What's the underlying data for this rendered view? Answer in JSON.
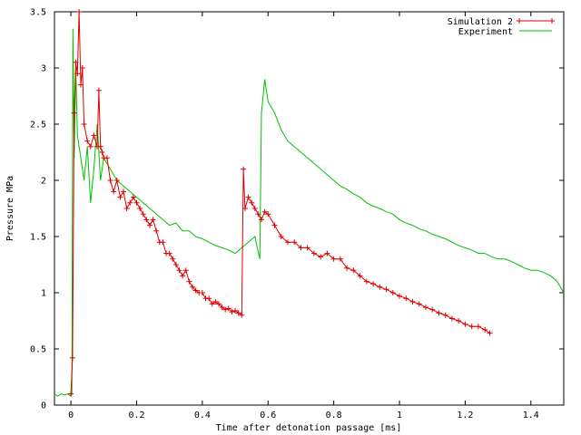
{
  "chart_data": {
    "type": "line",
    "title": "",
    "xlabel": "Time after detonation passage [ms]",
    "ylabel": "Pressure MPa",
    "xlim": [
      -0.05,
      1.5
    ],
    "ylim": [
      0,
      3.5
    ],
    "grid": false,
    "legend_position": "top-right",
    "x_ticks": [
      0,
      0.2,
      0.4,
      0.6,
      0.8,
      1,
      1.2,
      1.4
    ],
    "x_tick_labels": [
      "0",
      "0.2",
      "0.4",
      "0.6",
      "0.8",
      "1",
      "1.2",
      "1.4"
    ],
    "y_ticks": [
      0,
      0.5,
      1,
      1.5,
      2,
      2.5,
      3,
      3.5
    ],
    "y_tick_labels": [
      "0",
      "0.5",
      "1",
      "1.5",
      "2",
      "2.5",
      "3",
      "3.5"
    ],
    "series": [
      {
        "name": "Simulation 2",
        "color": "#dd0000",
        "marker": "plus",
        "x": [
          0.0,
          0.005,
          0.01,
          0.015,
          0.02,
          0.025,
          0.03,
          0.035,
          0.04,
          0.05,
          0.06,
          0.07,
          0.08,
          0.085,
          0.09,
          0.095,
          0.1,
          0.11,
          0.12,
          0.13,
          0.14,
          0.15,
          0.16,
          0.17,
          0.18,
          0.19,
          0.2,
          0.21,
          0.22,
          0.23,
          0.24,
          0.25,
          0.26,
          0.27,
          0.28,
          0.29,
          0.3,
          0.31,
          0.32,
          0.33,
          0.34,
          0.35,
          0.36,
          0.37,
          0.38,
          0.39,
          0.4,
          0.41,
          0.42,
          0.43,
          0.44,
          0.45,
          0.46,
          0.47,
          0.48,
          0.49,
          0.5,
          0.51,
          0.52,
          0.525,
          0.53,
          0.54,
          0.55,
          0.56,
          0.57,
          0.58,
          0.59,
          0.6,
          0.62,
          0.64,
          0.66,
          0.68,
          0.7,
          0.72,
          0.74,
          0.76,
          0.78,
          0.8,
          0.82,
          0.84,
          0.86,
          0.88,
          0.9,
          0.92,
          0.94,
          0.96,
          0.98,
          1.0,
          1.02,
          1.04,
          1.06,
          1.08,
          1.1,
          1.12,
          1.14,
          1.16,
          1.18,
          1.2,
          1.22,
          1.24,
          1.26,
          1.275
        ],
        "y": [
          0.1,
          0.42,
          2.6,
          3.05,
          2.95,
          3.5,
          2.85,
          3.0,
          2.5,
          2.35,
          2.3,
          2.4,
          2.3,
          2.8,
          2.3,
          2.25,
          2.2,
          2.2,
          2.0,
          1.9,
          2.0,
          1.85,
          1.9,
          1.75,
          1.8,
          1.85,
          1.8,
          1.75,
          1.7,
          1.65,
          1.6,
          1.65,
          1.55,
          1.45,
          1.45,
          1.35,
          1.35,
          1.3,
          1.25,
          1.2,
          1.15,
          1.2,
          1.1,
          1.05,
          1.02,
          1.0,
          1.0,
          0.95,
          0.95,
          0.9,
          0.92,
          0.9,
          0.87,
          0.85,
          0.86,
          0.83,
          0.84,
          0.82,
          0.8,
          2.1,
          1.75,
          1.85,
          1.8,
          1.75,
          1.7,
          1.65,
          1.72,
          1.7,
          1.6,
          1.5,
          1.45,
          1.45,
          1.4,
          1.4,
          1.35,
          1.32,
          1.35,
          1.3,
          1.3,
          1.22,
          1.2,
          1.15,
          1.1,
          1.08,
          1.05,
          1.03,
          1.0,
          0.97,
          0.95,
          0.92,
          0.9,
          0.87,
          0.85,
          0.82,
          0.8,
          0.77,
          0.75,
          0.72,
          0.7,
          0.7,
          0.67,
          0.64
        ]
      },
      {
        "name": "Experiment",
        "color": "#00c000",
        "marker": "none",
        "x": [
          -0.05,
          -0.04,
          -0.03,
          -0.02,
          -0.01,
          0.0,
          0.003,
          0.006,
          0.01,
          0.015,
          0.02,
          0.03,
          0.04,
          0.05,
          0.06,
          0.07,
          0.08,
          0.09,
          0.1,
          0.12,
          0.14,
          0.16,
          0.18,
          0.2,
          0.22,
          0.24,
          0.26,
          0.28,
          0.3,
          0.32,
          0.34,
          0.36,
          0.38,
          0.4,
          0.42,
          0.44,
          0.46,
          0.48,
          0.5,
          0.52,
          0.54,
          0.56,
          0.575,
          0.58,
          0.59,
          0.6,
          0.62,
          0.64,
          0.66,
          0.68,
          0.7,
          0.72,
          0.74,
          0.76,
          0.78,
          0.8,
          0.82,
          0.84,
          0.86,
          0.88,
          0.9,
          0.92,
          0.94,
          0.96,
          0.98,
          1.0,
          1.02,
          1.04,
          1.06,
          1.08,
          1.1,
          1.12,
          1.14,
          1.16,
          1.18,
          1.2,
          1.22,
          1.24,
          1.26,
          1.28,
          1.3,
          1.32,
          1.34,
          1.36,
          1.38,
          1.4,
          1.42,
          1.44,
          1.46,
          1.48,
          1.5
        ],
        "y": [
          0.1,
          0.08,
          0.1,
          0.09,
          0.1,
          0.08,
          0.1,
          3.35,
          2.2,
          3.0,
          2.4,
          2.2,
          2.0,
          2.3,
          1.8,
          2.1,
          2.5,
          2.0,
          2.2,
          2.1,
          2.0,
          1.95,
          1.9,
          1.85,
          1.8,
          1.75,
          1.7,
          1.65,
          1.6,
          1.62,
          1.55,
          1.55,
          1.5,
          1.48,
          1.45,
          1.42,
          1.4,
          1.38,
          1.35,
          1.4,
          1.45,
          1.5,
          1.3,
          2.6,
          2.9,
          2.7,
          2.6,
          2.45,
          2.35,
          2.3,
          2.25,
          2.2,
          2.15,
          2.1,
          2.05,
          2.0,
          1.95,
          1.92,
          1.88,
          1.85,
          1.8,
          1.77,
          1.75,
          1.72,
          1.7,
          1.65,
          1.62,
          1.6,
          1.57,
          1.55,
          1.52,
          1.5,
          1.48,
          1.45,
          1.42,
          1.4,
          1.38,
          1.35,
          1.35,
          1.32,
          1.3,
          1.3,
          1.28,
          1.25,
          1.22,
          1.2,
          1.2,
          1.18,
          1.15,
          1.1,
          1.0
        ]
      }
    ]
  }
}
